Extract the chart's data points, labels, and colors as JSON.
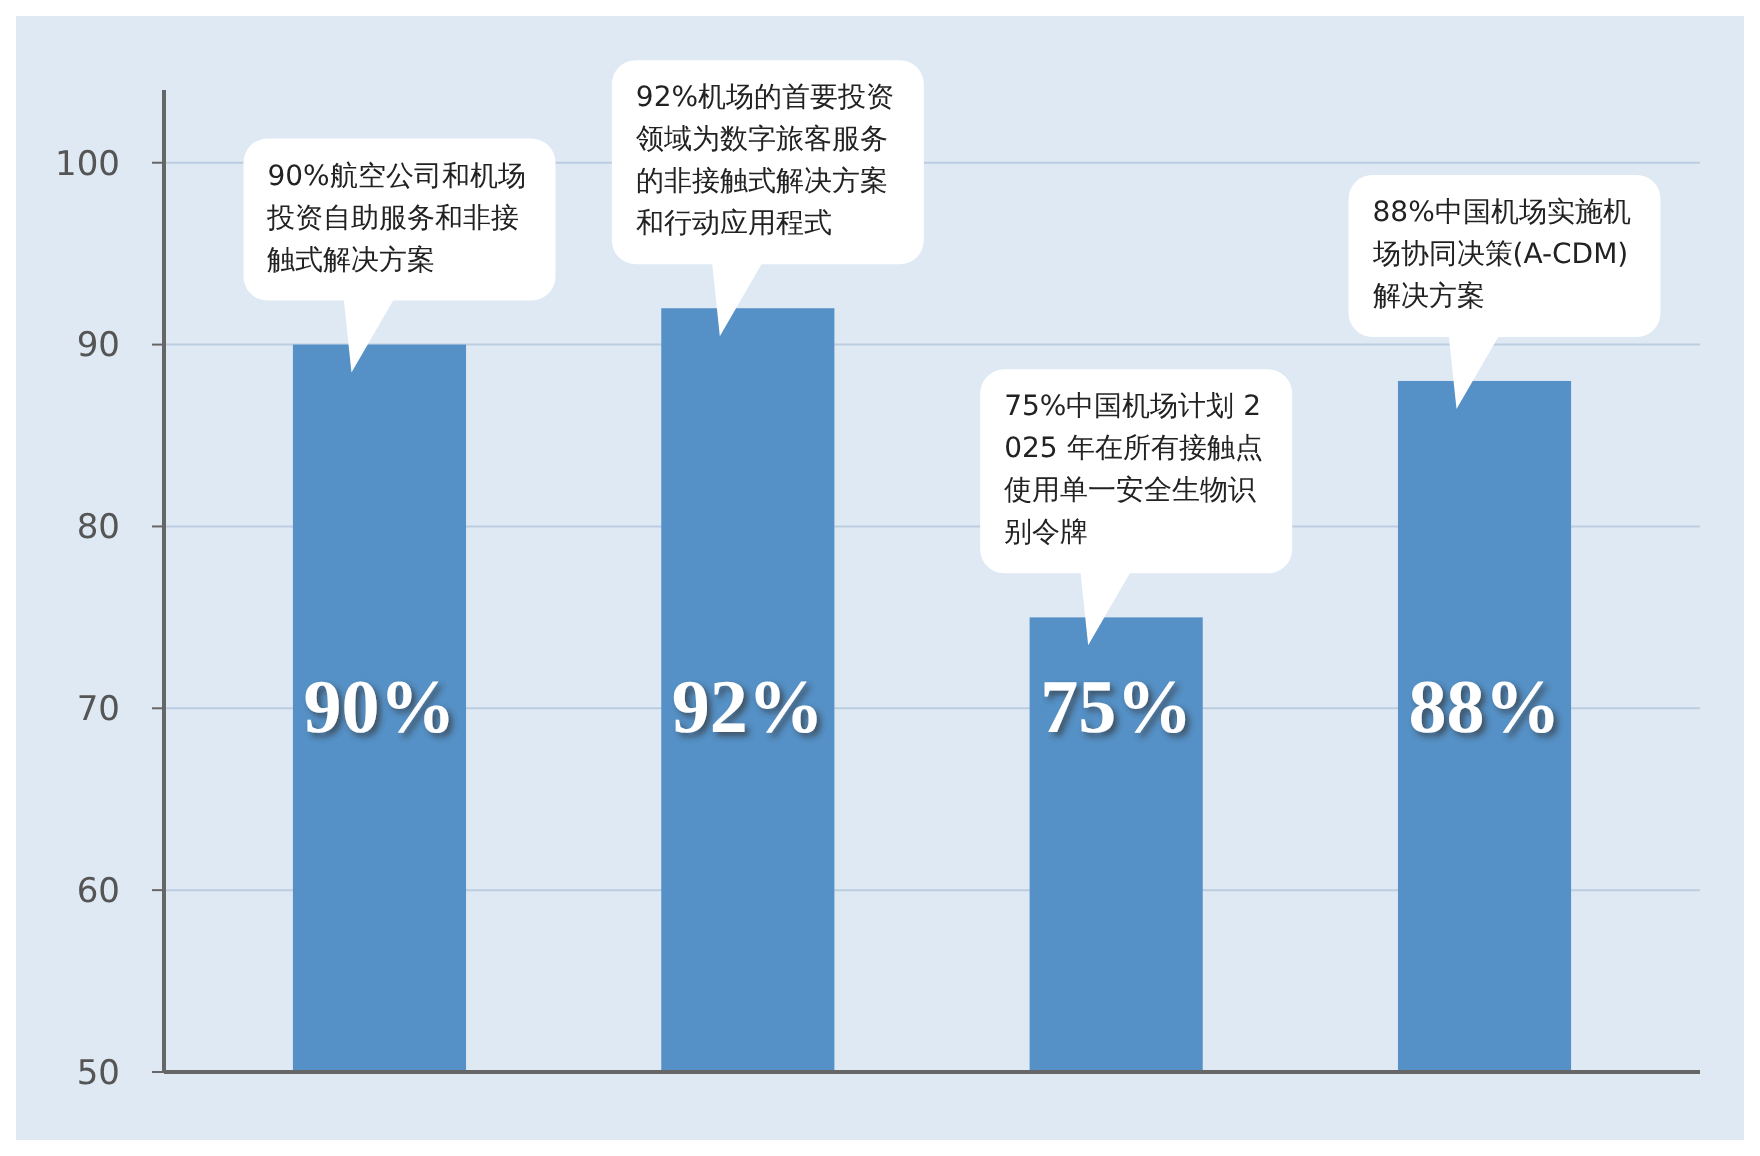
{
  "chart_data": {
    "type": "bar",
    "categories": [
      null,
      null,
      null,
      null
    ],
    "values": [
      90,
      92,
      75,
      88
    ],
    "value_labels": [
      "90%",
      "92%",
      "75%",
      "88%"
    ],
    "color": "#5591c7",
    "ylim": [
      50,
      104
    ],
    "yticks": [
      50,
      60,
      70,
      80,
      90,
      100
    ],
    "grid": "y",
    "annotations": [
      "90%航空公司和机场投资自助服务和非接触式解决方案",
      "92%机场的首要投资领域为数字旅客服务的非接触式解决方案和行动应用程式",
      "75%中国机场计划 2025 年在所有接触点使用单一安全生物识别令牌",
      "88%中国机场实施机场协同决策(A-CDM)解决方案"
    ]
  }
}
